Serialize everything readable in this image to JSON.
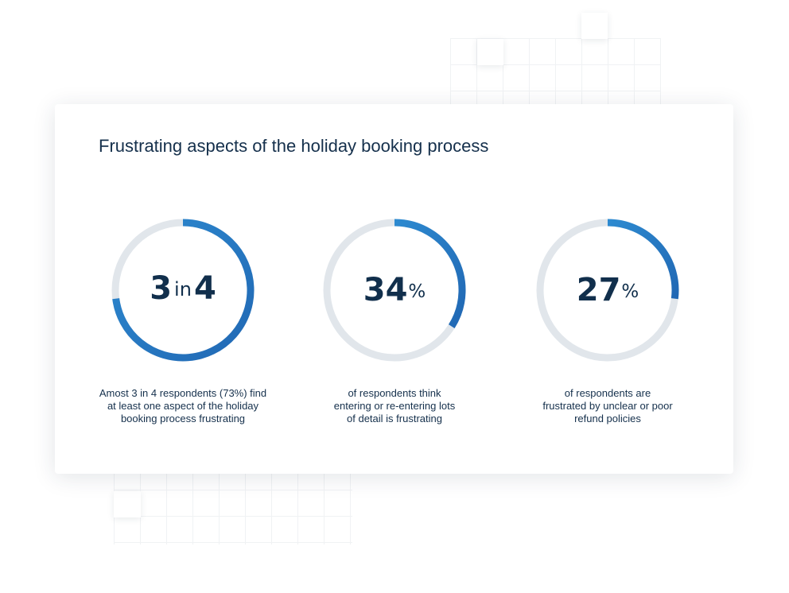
{
  "colors": {
    "accent_start": "#2d8ad0",
    "accent_end": "#2168b4",
    "track": "#e1e6eb",
    "text": "#15304c"
  },
  "chart_data": {
    "type": "donut",
    "title": "Frustrating aspects of the holiday booking process",
    "items": [
      {
        "value": 73,
        "unit": "%",
        "display_big_1": "3",
        "display_small": "in",
        "display_big_2": "4",
        "caption_lines": [
          "Amost 3 in 4 respondents (73%) find",
          "at least one aspect of the holiday",
          "booking process frustrating"
        ]
      },
      {
        "value": 34,
        "unit": "%",
        "display_big_1": "34",
        "display_pct": "%",
        "caption_lines": [
          "of respondents think",
          "entering or re-entering lots",
          "of detail is frustrating"
        ]
      },
      {
        "value": 27,
        "unit": "%",
        "display_big_1": "27",
        "display_pct": "%",
        "caption_lines": [
          "of respondents are",
          "frustrated by unclear or poor",
          "refund policies"
        ]
      }
    ]
  }
}
